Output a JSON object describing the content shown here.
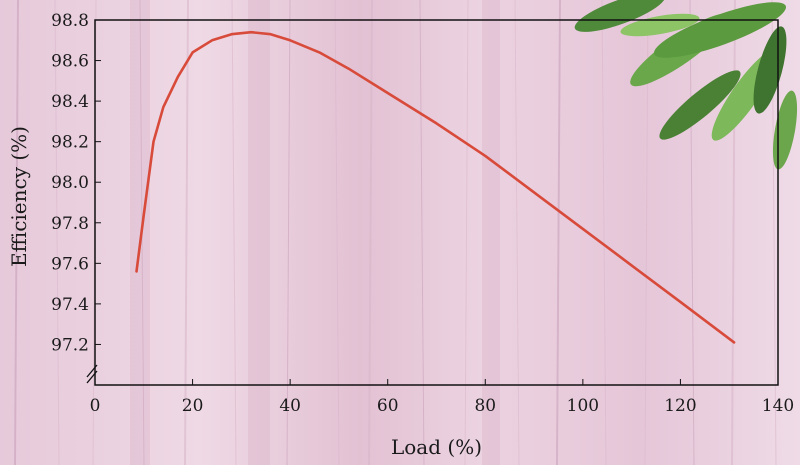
{
  "chart_data": {
    "type": "line",
    "title": "",
    "xlabel": "Load (%)",
    "ylabel": "Efficiency (%)",
    "xlim": [
      0,
      140
    ],
    "ylim": [
      97.0,
      98.8
    ],
    "axis_break_y": true,
    "grid": false,
    "x_ticks": [
      "0",
      "20",
      "40",
      "60",
      "80",
      "100",
      "120",
      "140"
    ],
    "y_ticks": [
      "97.2",
      "97.4",
      "97.6",
      "97.8",
      "98.0",
      "98.2",
      "98.4",
      "98.6",
      "98.8"
    ],
    "series": [
      {
        "color": "#d84a3a",
        "x": [
          8.5,
          10,
          12,
          14,
          17,
          20,
          24,
          28,
          32,
          36,
          40,
          46,
          52,
          60,
          70,
          80,
          90,
          100,
          110,
          120,
          131
        ],
        "y": [
          97.56,
          97.84,
          98.2,
          98.37,
          98.52,
          98.64,
          98.7,
          98.73,
          98.74,
          98.73,
          98.7,
          98.64,
          98.56,
          98.44,
          98.29,
          98.13,
          97.95,
          97.77,
          97.59,
          97.41,
          97.21
        ]
      }
    ]
  }
}
